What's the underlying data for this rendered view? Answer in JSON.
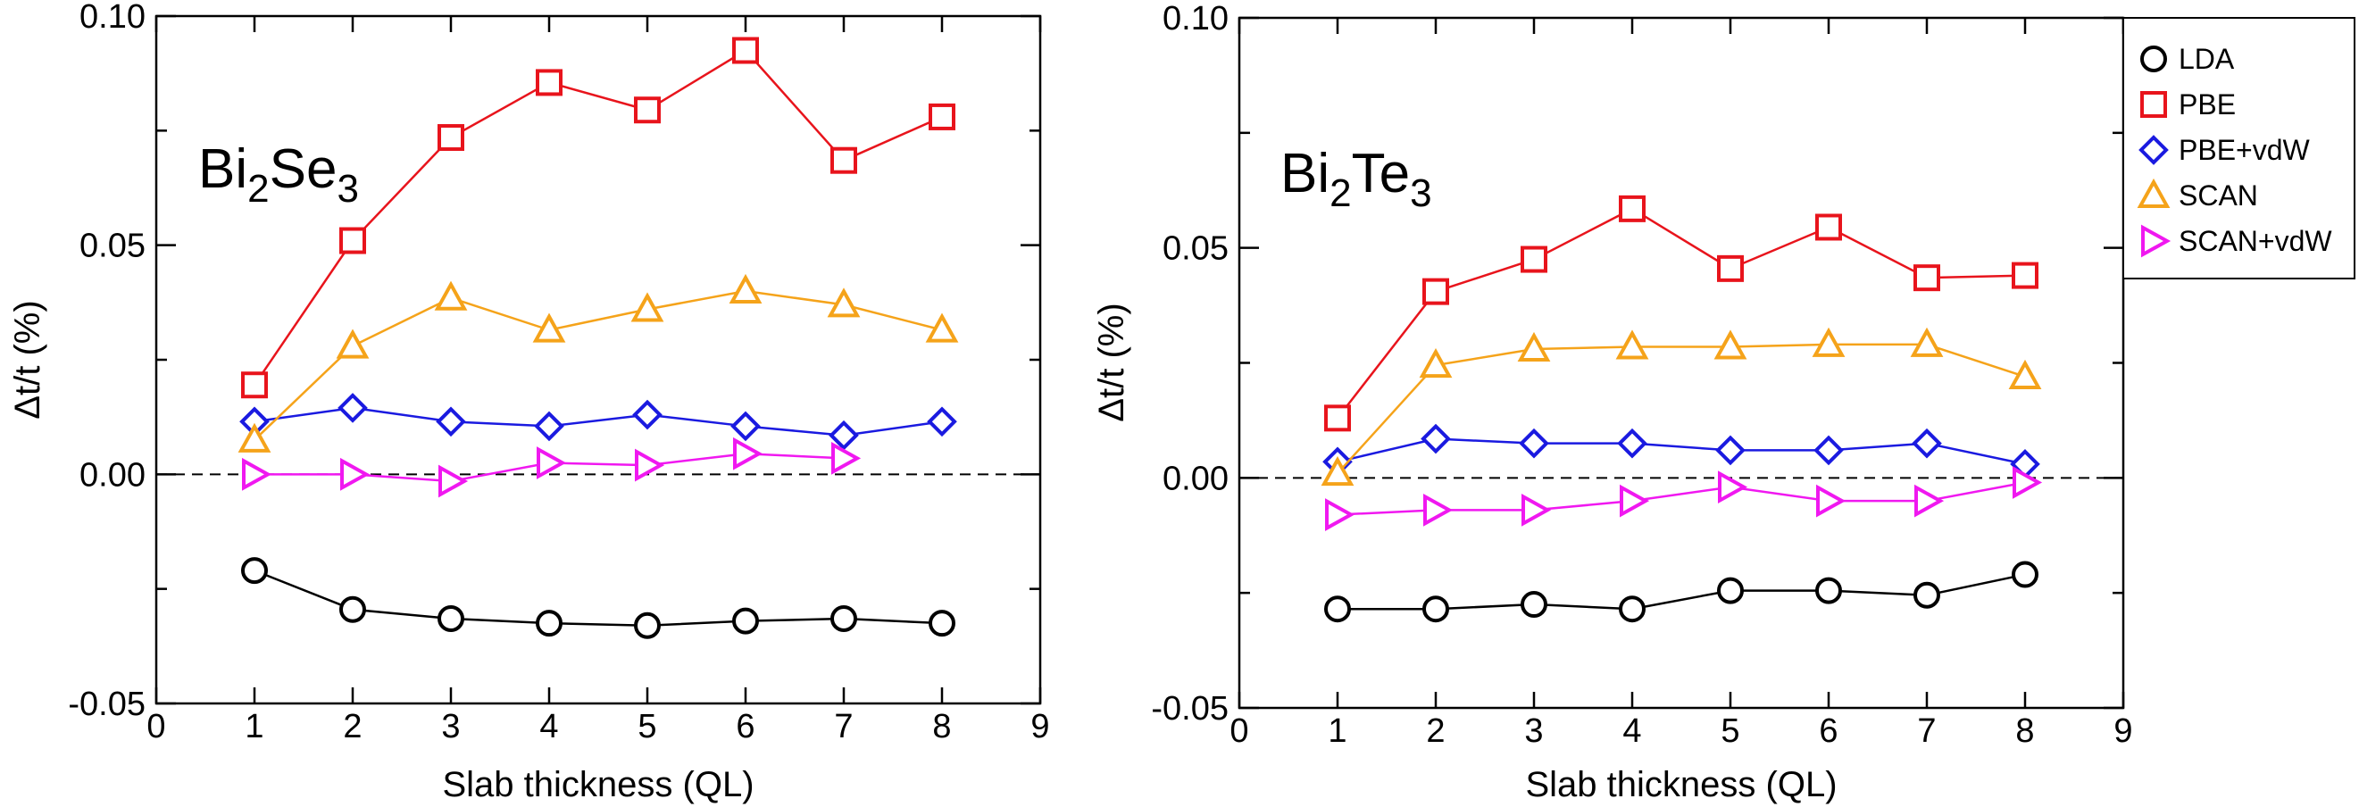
{
  "chart_data": [
    {
      "type": "line",
      "title": {
        "base": "Bi",
        "sub1": "2",
        "mid": "Se",
        "sub2": "3"
      },
      "xlabel": "Slab thickness (QL)",
      "ylabel": "Δt/t (%)",
      "xlim": [
        0,
        9
      ],
      "ylim": [
        -0.05,
        0.1
      ],
      "xticks": [
        "0",
        "1",
        "2",
        "3",
        "4",
        "5",
        "6",
        "7",
        "8",
        "9"
      ],
      "yticks": [
        "-0.05",
        "0.00",
        "0.05",
        "0.10"
      ],
      "reference_line": 0.0,
      "series": [
        {
          "name": "LDA",
          "color": "#000000",
          "marker": "circle",
          "x": [
            1,
            2,
            3,
            4,
            5,
            6,
            7,
            8
          ],
          "values": [
            -0.021,
            -0.0295,
            -0.0315,
            -0.0325,
            -0.033,
            -0.032,
            -0.0315,
            -0.0325
          ]
        },
        {
          "name": "PBE",
          "color": "#e8141c",
          "marker": "square",
          "x": [
            1,
            2,
            3,
            4,
            5,
            6,
            7,
            8
          ],
          "values": [
            0.0195,
            0.051,
            0.0735,
            0.0855,
            0.0795,
            0.0925,
            0.0685,
            0.078
          ]
        },
        {
          "name": "PBE+vdW",
          "color": "#1a1ae0",
          "marker": "diamond",
          "x": [
            1,
            2,
            3,
            4,
            5,
            6,
            7,
            8
          ],
          "values": [
            0.0115,
            0.0145,
            0.0115,
            0.0105,
            0.013,
            0.0105,
            0.0085,
            0.0115
          ]
        },
        {
          "name": "SCAN",
          "color": "#f5a31a",
          "marker": "triangle-up",
          "x": [
            1,
            2,
            3,
            4,
            5,
            6,
            7,
            8
          ],
          "values": [
            0.0075,
            0.028,
            0.0385,
            0.0315,
            0.036,
            0.04,
            0.037,
            0.0315
          ]
        },
        {
          "name": "SCAN+vdW",
          "color": "#f018f0",
          "marker": "triangle-right",
          "x": [
            1,
            2,
            3,
            4,
            5,
            6,
            7
          ],
          "values": [
            0.0,
            0.0,
            -0.0015,
            0.0025,
            0.002,
            0.0045,
            0.0035
          ]
        }
      ]
    },
    {
      "type": "line",
      "title": {
        "base": "Bi",
        "sub1": "2",
        "mid": "Te",
        "sub2": "3"
      },
      "xlabel": "Slab thickness (QL)",
      "ylabel": "Δt/t (%)",
      "xlim": [
        0,
        9
      ],
      "ylim": [
        -0.05,
        0.1
      ],
      "xticks": [
        "0",
        "1",
        "2",
        "3",
        "4",
        "5",
        "6",
        "7",
        "8",
        "9"
      ],
      "yticks": [
        "-0.05",
        "0.00",
        "0.05",
        "0.10"
      ],
      "reference_line": 0.0,
      "series": [
        {
          "name": "LDA",
          "color": "#000000",
          "marker": "circle",
          "x": [
            1,
            2,
            3,
            4,
            5,
            6,
            7,
            8
          ],
          "values": [
            -0.0285,
            -0.0285,
            -0.0275,
            -0.0285,
            -0.0245,
            -0.0245,
            -0.0255,
            -0.021
          ]
        },
        {
          "name": "PBE",
          "color": "#e8141c",
          "marker": "square",
          "x": [
            1,
            2,
            3,
            4,
            5,
            6,
            7,
            8
          ],
          "values": [
            0.013,
            0.0405,
            0.0475,
            0.0585,
            0.0455,
            0.0545,
            0.0435,
            0.044
          ]
        },
        {
          "name": "PBE+vdW",
          "color": "#1a1ae0",
          "marker": "diamond",
          "x": [
            1,
            2,
            3,
            4,
            5,
            6,
            7,
            8
          ],
          "values": [
            0.0035,
            0.0085,
            0.0075,
            0.0075,
            0.006,
            0.006,
            0.0075,
            0.003
          ]
        },
        {
          "name": "SCAN",
          "color": "#f5a31a",
          "marker": "triangle-up",
          "x": [
            1,
            2,
            3,
            4,
            5,
            6,
            7,
            8
          ],
          "values": [
            0.001,
            0.0245,
            0.028,
            0.0285,
            0.0285,
            0.029,
            0.029,
            0.022
          ]
        },
        {
          "name": "SCAN+vdW",
          "color": "#f018f0",
          "marker": "triangle-right",
          "x": [
            1,
            2,
            3,
            4,
            5,
            6,
            7,
            8
          ],
          "values": [
            -0.008,
            -0.007,
            -0.007,
            -0.005,
            -0.002,
            -0.005,
            -0.005,
            -0.001
          ]
        }
      ]
    }
  ],
  "legend": {
    "entries": [
      "LDA",
      "PBE",
      "PBE+vdW",
      "SCAN",
      "SCAN+vdW"
    ],
    "location": "top-right"
  }
}
